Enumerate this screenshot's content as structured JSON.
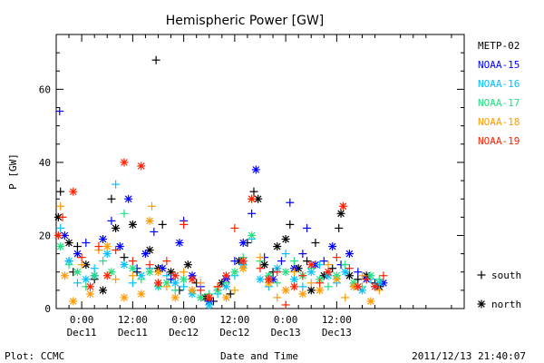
{
  "chart_data": {
    "type": "scatter",
    "title": "Hemispheric Power [GW]",
    "ylabel": "P [GW]",
    "xlabel": "Date and Time",
    "ylim": [
      0,
      75
    ],
    "xlim_hours": [
      -6,
      90
    ],
    "y_ticks": [
      0,
      20,
      40,
      60
    ],
    "x_ticks": [
      {
        "h": 0,
        "top": "0:00",
        "bottom": "Dec11"
      },
      {
        "h": 12,
        "top": "12:00",
        "bottom": "Dec11"
      },
      {
        "h": 24,
        "top": "0:00",
        "bottom": "Dec12"
      },
      {
        "h": 36,
        "top": "12:00",
        "bottom": "Dec12"
      },
      {
        "h": 48,
        "top": "0:00",
        "bottom": "Dec13"
      },
      {
        "h": 60,
        "top": "12:00",
        "bottom": "Dec13"
      }
    ],
    "x_units": "hours from 0:00 Dec11",
    "legend_position": "right",
    "markers": {
      "south": "+",
      "north": "*"
    },
    "marker_legend": [
      {
        "marker": "+",
        "label": "south"
      },
      {
        "marker": "*",
        "label": "north"
      }
    ],
    "series": [
      {
        "name": "METP-02",
        "color": "#000000",
        "points": [
          [
            -5.5,
            25,
            "*"
          ],
          [
            -5,
            32,
            "+"
          ],
          [
            -3,
            18,
            "*"
          ],
          [
            -2,
            10,
            "+"
          ],
          [
            -1,
            17,
            "+"
          ],
          [
            1,
            12,
            "*"
          ],
          [
            3,
            8,
            "+"
          ],
          [
            5,
            5,
            "*"
          ],
          [
            7,
            30,
            "+"
          ],
          [
            8,
            22,
            "*"
          ],
          [
            10,
            14,
            "+"
          ],
          [
            12,
            23,
            "*"
          ],
          [
            13,
            10,
            "+"
          ],
          [
            16,
            16,
            "*"
          ],
          [
            17.5,
            68,
            "+"
          ],
          [
            18,
            11,
            "*"
          ],
          [
            19,
            23,
            "+"
          ],
          [
            21,
            10,
            "*"
          ],
          [
            23,
            5,
            "+"
          ],
          [
            25,
            12,
            "*"
          ],
          [
            27,
            7,
            "+"
          ],
          [
            29,
            3,
            "*"
          ],
          [
            31,
            2,
            "+"
          ],
          [
            33,
            7,
            "*"
          ],
          [
            35,
            4,
            "+"
          ],
          [
            37,
            13,
            "*"
          ],
          [
            39,
            18,
            "+"
          ],
          [
            40.5,
            32,
            "+"
          ],
          [
            41.5,
            30,
            "*"
          ],
          [
            43,
            12,
            "*"
          ],
          [
            45,
            10,
            "+"
          ],
          [
            46,
            17,
            "*"
          ],
          [
            48,
            19,
            "*"
          ],
          [
            49,
            23,
            "+"
          ],
          [
            51,
            11,
            "*"
          ],
          [
            53,
            13,
            "+"
          ],
          [
            54,
            5,
            "*"
          ],
          [
            55,
            18,
            "+"
          ],
          [
            57,
            9,
            "*"
          ],
          [
            59,
            11,
            "+"
          ],
          [
            60.5,
            22,
            "+"
          ],
          [
            61,
            26,
            "*"
          ],
          [
            63,
            9,
            "*"
          ],
          [
            65,
            8,
            "+"
          ],
          [
            67,
            9,
            "*"
          ],
          [
            69,
            7,
            "+"
          ],
          [
            70,
            6,
            "*"
          ]
        ]
      },
      {
        "name": "NOAA-15",
        "color": "#0000ff",
        "points": [
          [
            -5.2,
            54,
            "+"
          ],
          [
            -4,
            20,
            "*"
          ],
          [
            -3,
            13,
            "+"
          ],
          [
            -1,
            15,
            "*"
          ],
          [
            1,
            18,
            "+"
          ],
          [
            3,
            9,
            "*"
          ],
          [
            5,
            19,
            "*"
          ],
          [
            7,
            24,
            "+"
          ],
          [
            9,
            17,
            "*"
          ],
          [
            11,
            30,
            "*"
          ],
          [
            13,
            11,
            "+"
          ],
          [
            15,
            15,
            "*"
          ],
          [
            17,
            21,
            "+"
          ],
          [
            19,
            11,
            "*"
          ],
          [
            21,
            8,
            "+"
          ],
          [
            23,
            18,
            "*"
          ],
          [
            24,
            24,
            "+"
          ],
          [
            26,
            9,
            "*"
          ],
          [
            28,
            6,
            "+"
          ],
          [
            30,
            2,
            "*"
          ],
          [
            32,
            5,
            "+"
          ],
          [
            34,
            8,
            "*"
          ],
          [
            36,
            13,
            "+"
          ],
          [
            38,
            18,
            "*"
          ],
          [
            40,
            26,
            "+"
          ],
          [
            41,
            38,
            "*"
          ],
          [
            43,
            14,
            "+"
          ],
          [
            45,
            8,
            "*"
          ],
          [
            47,
            13,
            "+"
          ],
          [
            49,
            29,
            "+"
          ],
          [
            50,
            11,
            "*"
          ],
          [
            52,
            15,
            "+"
          ],
          [
            53,
            22,
            "+"
          ],
          [
            55,
            12,
            "*"
          ],
          [
            57,
            13,
            "+"
          ],
          [
            59,
            17,
            "*"
          ],
          [
            61,
            12,
            "+"
          ],
          [
            63,
            15,
            "*"
          ],
          [
            65,
            10,
            "+"
          ],
          [
            67,
            8,
            "*"
          ],
          [
            69,
            6,
            "+"
          ],
          [
            71,
            7,
            "*"
          ]
        ]
      },
      {
        "name": "NOAA-16",
        "color": "#00c0ff",
        "points": [
          [
            -5,
            22,
            "+"
          ],
          [
            -3,
            13,
            "*"
          ],
          [
            -1,
            7,
            "+"
          ],
          [
            1,
            8,
            "*"
          ],
          [
            3,
            11,
            "+"
          ],
          [
            6,
            15,
            "*"
          ],
          [
            8,
            34,
            "+"
          ],
          [
            10,
            12,
            "*"
          ],
          [
            12,
            7,
            "+"
          ],
          [
            14,
            9,
            "*"
          ],
          [
            16,
            11,
            "+"
          ],
          [
            18,
            6,
            "*"
          ],
          [
            20,
            9,
            "+"
          ],
          [
            22,
            7,
            "*"
          ],
          [
            24,
            6,
            "+"
          ],
          [
            26,
            4,
            "*"
          ],
          [
            28,
            3,
            "+"
          ],
          [
            30,
            1,
            "*"
          ],
          [
            32,
            4,
            "+"
          ],
          [
            34,
            6,
            "*"
          ],
          [
            36,
            9,
            "+"
          ],
          [
            38,
            12,
            "*"
          ],
          [
            40,
            19,
            "+"
          ],
          [
            42,
            8,
            "*"
          ],
          [
            44,
            6,
            "+"
          ],
          [
            46,
            11,
            "*"
          ],
          [
            48,
            15,
            "+"
          ],
          [
            50,
            8,
            "*"
          ],
          [
            52,
            6,
            "+"
          ],
          [
            54,
            10,
            "*"
          ],
          [
            56,
            12,
            "+"
          ],
          [
            58,
            9,
            "*"
          ],
          [
            60,
            7,
            "+"
          ],
          [
            62,
            10,
            "*"
          ],
          [
            64,
            6,
            "+"
          ],
          [
            66,
            5,
            "*"
          ],
          [
            68,
            8,
            "+"
          ],
          [
            70,
            7,
            "*"
          ]
        ]
      },
      {
        "name": "NOAA-17",
        "color": "#20e080",
        "points": [
          [
            -5,
            17,
            "*"
          ],
          [
            -3,
            12,
            "+"
          ],
          [
            -1,
            10,
            "*"
          ],
          [
            1,
            6,
            "+"
          ],
          [
            3,
            9,
            "*"
          ],
          [
            5,
            13,
            "+"
          ],
          [
            7,
            10,
            "*"
          ],
          [
            10,
            26,
            "+"
          ],
          [
            12,
            11,
            "*"
          ],
          [
            14,
            8,
            "+"
          ],
          [
            16,
            10,
            "*"
          ],
          [
            18,
            6,
            "+"
          ],
          [
            20,
            7,
            "*"
          ],
          [
            22,
            5,
            "+"
          ],
          [
            24,
            8,
            "*"
          ],
          [
            26,
            5,
            "+"
          ],
          [
            28,
            3,
            "*"
          ],
          [
            30,
            4,
            "+"
          ],
          [
            32,
            5,
            "*"
          ],
          [
            34,
            7,
            "+"
          ],
          [
            36,
            10,
            "*"
          ],
          [
            38,
            14,
            "+"
          ],
          [
            40,
            20,
            "*"
          ],
          [
            42,
            13,
            "+"
          ],
          [
            44,
            9,
            "*"
          ],
          [
            46,
            7,
            "+"
          ],
          [
            48,
            10,
            "*"
          ],
          [
            50,
            13,
            "+"
          ],
          [
            52,
            9,
            "*"
          ],
          [
            54,
            11,
            "+"
          ],
          [
            56,
            8,
            "*"
          ],
          [
            58,
            6,
            "+"
          ],
          [
            60,
            9,
            "*"
          ],
          [
            62,
            12,
            "+"
          ],
          [
            64,
            7,
            "*"
          ],
          [
            66,
            6,
            "+"
          ],
          [
            68,
            9,
            "*"
          ],
          [
            70,
            8,
            "+"
          ]
        ]
      },
      {
        "name": "NOAA-18",
        "color": "#ff9a00",
        "points": [
          [
            -5,
            28,
            "+"
          ],
          [
            -4,
            9,
            "*"
          ],
          [
            -2,
            2,
            "*"
          ],
          [
            0,
            12,
            "+"
          ],
          [
            2,
            4,
            "*"
          ],
          [
            4,
            16,
            "+"
          ],
          [
            6,
            17,
            "*"
          ],
          [
            8,
            8,
            "+"
          ],
          [
            10,
            3,
            "*"
          ],
          [
            12,
            9,
            "+"
          ],
          [
            14,
            4,
            "*"
          ],
          [
            16,
            24,
            "*"
          ],
          [
            16.5,
            28,
            "+"
          ],
          [
            18,
            10,
            "*"
          ],
          [
            20,
            6,
            "+"
          ],
          [
            22,
            3,
            "*"
          ],
          [
            24,
            10,
            "+"
          ],
          [
            26,
            5,
            "*"
          ],
          [
            28,
            7,
            "+"
          ],
          [
            30,
            3,
            "*"
          ],
          [
            32,
            6,
            "+"
          ],
          [
            34,
            3,
            "*"
          ],
          [
            36,
            5,
            "+"
          ],
          [
            38,
            11,
            "*"
          ],
          [
            40,
            30,
            "*"
          ],
          [
            42,
            14,
            "+"
          ],
          [
            44,
            7,
            "*"
          ],
          [
            46,
            3,
            "+"
          ],
          [
            48,
            5,
            "*"
          ],
          [
            50,
            10,
            "+"
          ],
          [
            52,
            4,
            "*"
          ],
          [
            54,
            7,
            "+"
          ],
          [
            56,
            5,
            "*"
          ],
          [
            58,
            12,
            "+"
          ],
          [
            60,
            8,
            "*"
          ],
          [
            62,
            3,
            "+"
          ],
          [
            64,
            6,
            "*"
          ],
          [
            66,
            9,
            "+"
          ],
          [
            68,
            2,
            "*"
          ],
          [
            70,
            5,
            "+"
          ]
        ]
      },
      {
        "name": "NOAA-19",
        "color": "#ff2000",
        "points": [
          [
            -5.5,
            20,
            "*"
          ],
          [
            -4.5,
            25,
            "+"
          ],
          [
            -2,
            32,
            "*"
          ],
          [
            0,
            14,
            "+"
          ],
          [
            2,
            6,
            "*"
          ],
          [
            4,
            17,
            "+"
          ],
          [
            6,
            9,
            "*"
          ],
          [
            8,
            16,
            "+"
          ],
          [
            10,
            40,
            "*"
          ],
          [
            12,
            13,
            "+"
          ],
          [
            14,
            39,
            "*"
          ],
          [
            16,
            12,
            "+"
          ],
          [
            18,
            7,
            "*"
          ],
          [
            20,
            13,
            "+"
          ],
          [
            22,
            9,
            "*"
          ],
          [
            24,
            23,
            "+"
          ],
          [
            26,
            8,
            "*"
          ],
          [
            28,
            5,
            "+"
          ],
          [
            30,
            3,
            "*"
          ],
          [
            32,
            6,
            "+"
          ],
          [
            34,
            9,
            "*"
          ],
          [
            36,
            22,
            "+"
          ],
          [
            38,
            13,
            "*"
          ],
          [
            40,
            30,
            "*"
          ],
          [
            42,
            11,
            "+"
          ],
          [
            44,
            8,
            "*"
          ],
          [
            46,
            10,
            "+"
          ],
          [
            48,
            1,
            "+"
          ],
          [
            50,
            6,
            "*"
          ],
          [
            52,
            9,
            "+"
          ],
          [
            54,
            12,
            "*"
          ],
          [
            56,
            7,
            "+"
          ],
          [
            58,
            10,
            "*"
          ],
          [
            60,
            14,
            "+"
          ],
          [
            61.5,
            28,
            "*"
          ],
          [
            63,
            11,
            "+"
          ],
          [
            65,
            6,
            "*"
          ],
          [
            67,
            8,
            "+"
          ],
          [
            69,
            6,
            "*"
          ],
          [
            71,
            9,
            "+"
          ]
        ]
      }
    ]
  },
  "footer": {
    "left": "Plot: CCMC",
    "center": "Date and Time",
    "right": "2011/12/13 21:40:07"
  }
}
